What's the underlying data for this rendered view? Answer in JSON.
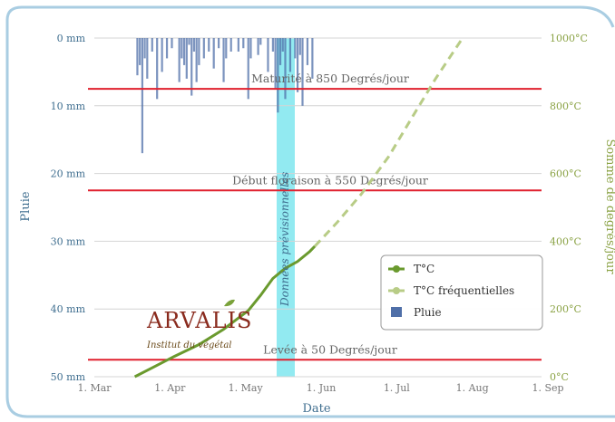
{
  "chart_data": {
    "type": "line",
    "xlabel": "Date",
    "y_left_label": "Pluie",
    "y_right_label": "Somme de degrés/jour",
    "x_ticks": [
      "1. Mar",
      "1. Apr",
      "1. May",
      "1. Jun",
      "1. Jul",
      "1. Aug",
      "1. Sep"
    ],
    "y_left_ticks": [
      "0 mm",
      "10 mm",
      "20 mm",
      "30 mm",
      "40 mm",
      "50 mm"
    ],
    "y_right_ticks": [
      "1000°C",
      "800°C",
      "600°C",
      "400°C",
      "200°C",
      "0°C"
    ],
    "x_range": [
      "2013-03-01",
      "2013-09-01"
    ],
    "y_left_range": [
      0,
      50
    ],
    "y_left_inverted": true,
    "y_right_range": [
      0,
      1000
    ],
    "grid": true,
    "legend_position": "bottom-right",
    "thresholds": [
      {
        "label": "Maturité à 850 Degrés/jour",
        "value": 850
      },
      {
        "label": "Début floraison à 550 Degrés/jour",
        "value": 550
      },
      {
        "label": "Levée à 50 Degrés/jour",
        "value": 50
      }
    ],
    "forecast_band": {
      "label": "Données prévisionnelles",
      "from": "2013-05-24",
      "to": "2013-06-01"
    },
    "series": [
      {
        "name": "T°C",
        "axis": "right",
        "color": "#6a9a2e",
        "points": [
          [
            "2013-03-20",
            0
          ],
          [
            "2013-03-28",
            30
          ],
          [
            "2013-04-05",
            60
          ],
          [
            "2013-04-15",
            95
          ],
          [
            "2013-04-25",
            140
          ],
          [
            "2013-05-05",
            195
          ],
          [
            "2013-05-10",
            240
          ],
          [
            "2013-05-15",
            290
          ],
          [
            "2013-05-20",
            320
          ],
          [
            "2013-05-25",
            340
          ],
          [
            "2013-05-30",
            370
          ],
          [
            "2013-06-01",
            385
          ]
        ]
      },
      {
        "name": "T°C fréquentielles",
        "axis": "right",
        "color": "#b8cc86",
        "points": [
          [
            "2013-06-01",
            385
          ],
          [
            "2013-06-10",
            455
          ],
          [
            "2013-06-20",
            540
          ],
          [
            "2013-07-01",
            650
          ],
          [
            "2013-07-10",
            760
          ],
          [
            "2013-07-20",
            880
          ],
          [
            "2013-07-31",
            1000
          ]
        ]
      },
      {
        "name": "Pluie",
        "axis": "left",
        "color": "#4f6fa8",
        "type": "bar",
        "points": [
          [
            "2013-03-21",
            5.5
          ],
          [
            "2013-03-22",
            4
          ],
          [
            "2013-03-23",
            17
          ],
          [
            "2013-03-24",
            3
          ],
          [
            "2013-03-25",
            6
          ],
          [
            "2013-03-27",
            2
          ],
          [
            "2013-03-29",
            9
          ],
          [
            "2013-03-31",
            5
          ],
          [
            "2013-04-02",
            3
          ],
          [
            "2013-04-04",
            1.5
          ],
          [
            "2013-04-07",
            6.5
          ],
          [
            "2013-04-08",
            3
          ],
          [
            "2013-04-09",
            4
          ],
          [
            "2013-04-10",
            6
          ],
          [
            "2013-04-11",
            1
          ],
          [
            "2013-04-12",
            8.5
          ],
          [
            "2013-04-13",
            2
          ],
          [
            "2013-04-14",
            6.5
          ],
          [
            "2013-04-15",
            4
          ],
          [
            "2013-04-17",
            3
          ],
          [
            "2013-04-19",
            2
          ],
          [
            "2013-04-21",
            4.5
          ],
          [
            "2013-04-23",
            1.5
          ],
          [
            "2013-04-25",
            6.5
          ],
          [
            "2013-04-26",
            3
          ],
          [
            "2013-04-28",
            2
          ],
          [
            "2013-05-01",
            2
          ],
          [
            "2013-05-03",
            1.5
          ],
          [
            "2013-05-05",
            9
          ],
          [
            "2013-05-06",
            3
          ],
          [
            "2013-05-09",
            2.5
          ],
          [
            "2013-05-10",
            1
          ],
          [
            "2013-05-13",
            5
          ],
          [
            "2013-05-15",
            2
          ],
          [
            "2013-05-16",
            7.5
          ],
          [
            "2013-05-17",
            11
          ],
          [
            "2013-05-18",
            4
          ],
          [
            "2013-05-19",
            2
          ],
          [
            "2013-05-20",
            9
          ],
          [
            "2013-05-22",
            5
          ],
          [
            "2013-05-24",
            3
          ],
          [
            "2013-05-25",
            8
          ],
          [
            "2013-05-26",
            2.5
          ],
          [
            "2013-05-27",
            10
          ],
          [
            "2013-05-29",
            4
          ],
          [
            "2013-05-31",
            6
          ]
        ]
      }
    ]
  },
  "logo": {
    "name": "ARVALIS",
    "tagline": "Institut du végétal"
  }
}
